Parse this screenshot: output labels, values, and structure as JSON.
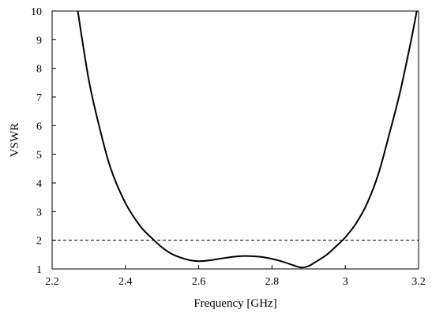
{
  "chart_data": {
    "type": "line",
    "title": "",
    "xlabel": "Frequency [GHz]",
    "ylabel": "VSWR",
    "xlim": [
      2.2,
      3.2
    ],
    "ylim": [
      1,
      10
    ],
    "xticks": [
      "2.2",
      "2.4",
      "2.6",
      "2.8",
      "3",
      "3.2"
    ],
    "yticks": [
      "1",
      "2",
      "3",
      "4",
      "5",
      "6",
      "7",
      "8",
      "9",
      "10"
    ],
    "grid": false,
    "legend": "none",
    "series": [
      {
        "x": [
          2.27,
          2.3,
          2.33,
          2.36,
          2.4,
          2.44,
          2.47,
          2.5,
          2.53,
          2.57,
          2.6,
          2.63,
          2.67,
          2.7,
          2.73,
          2.77,
          2.8,
          2.83,
          2.86,
          2.88,
          2.9,
          2.92,
          2.95,
          2.98,
          3.0,
          3.03,
          3.06,
          3.09,
          3.12,
          3.15,
          3.18,
          3.195
        ],
        "y": [
          10.0,
          7.6,
          5.9,
          4.5,
          3.3,
          2.5,
          2.1,
          1.75,
          1.5,
          1.32,
          1.27,
          1.3,
          1.38,
          1.43,
          1.45,
          1.42,
          1.35,
          1.25,
          1.12,
          1.05,
          1.1,
          1.25,
          1.5,
          1.85,
          2.1,
          2.6,
          3.3,
          4.3,
          5.7,
          7.2,
          9.0,
          10.0
        ]
      }
    ],
    "reference_line": {
      "y": 2,
      "style": "dashed"
    }
  }
}
